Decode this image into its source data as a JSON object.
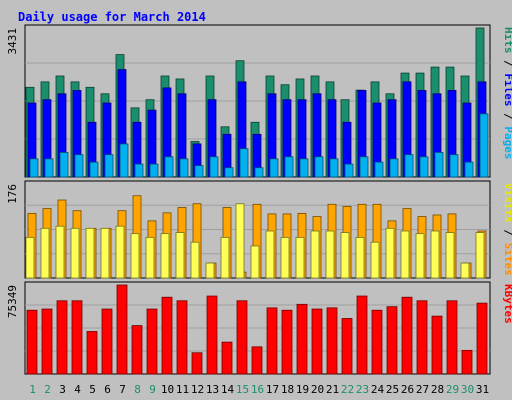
{
  "chart_data": {
    "type": "bar",
    "title": "Daily usage for March 2014",
    "days": [
      "1",
      "2",
      "3",
      "4",
      "5",
      "6",
      "7",
      "8",
      "9",
      "10",
      "11",
      "12",
      "13",
      "14",
      "15",
      "16",
      "17",
      "18",
      "19",
      "20",
      "21",
      "22",
      "23",
      "24",
      "25",
      "26",
      "27",
      "28",
      "29",
      "30",
      "31"
    ],
    "weekend_days": [
      "1",
      "2",
      "8",
      "9",
      "15",
      "16",
      "22",
      "23",
      "29",
      "30"
    ],
    "panels": [
      {
        "id": "hits",
        "max_label": "3431",
        "ymax": 3431,
        "right_labels": [
          {
            "text": "Pages",
            "color": "#00b0f0"
          },
          {
            "text": " / ",
            "color": "#000000"
          },
          {
            "text": "Files",
            "color": "#0000ff"
          },
          {
            "text": " / ",
            "color": "#000000"
          },
          {
            "text": "Hits",
            "color": "#1b8e6e"
          }
        ],
        "series": [
          {
            "name": "Hits",
            "color": "#1b8e6e",
            "values": [
              2065,
              2191,
              2326,
              2191,
              2065,
              1916,
              2818,
              1593,
              1780,
              2326,
              2258,
              818,
              2326,
              1156,
              2678,
              1260,
              2326,
              2125,
              2258,
              2326,
              2191,
              1780,
              2000,
              2191,
              1916,
              2393,
              2393,
              2531,
              2531,
              2326,
              3431
            ]
          },
          {
            "name": "Files",
            "color": "#0000ff",
            "values": [
              1703,
              1780,
              1916,
              1993,
              1260,
              1703,
              2474,
              1260,
              1540,
              2051,
              1916,
              762,
              1780,
              983,
              2191,
              983,
              1916,
              1780,
              1780,
              1916,
              1780,
              1260,
              1993,
              1703,
              1780,
              2191,
              1993,
              1916,
              1993,
              1703,
              2191
            ]
          },
          {
            "name": "Pages",
            "color": "#00b0f0",
            "values": [
              418,
              418,
              565,
              514,
              342,
              514,
              762,
              297,
              297,
              465,
              418,
              262,
              465,
              214,
              652,
              214,
              418,
              465,
              418,
              465,
              418,
              297,
              465,
              342,
              418,
              514,
              465,
              565,
              514,
              342,
              1455
            ]
          }
        ]
      },
      {
        "id": "visits",
        "max_label": "176",
        "ymax": 176,
        "right_labels": [
          {
            "text": "Sites",
            "color": "#ff8c00"
          },
          {
            "text": " / ",
            "color": "#000000"
          },
          {
            "text": "Visits",
            "color": "#e6e600"
          }
        ],
        "series": [
          {
            "name": "Visits",
            "color": "#ffa500",
            "values": [
              121,
              130,
              146,
              126,
              93,
              93,
              126,
              154,
              107,
              122,
              132,
              139,
              28,
              132,
              11,
              138,
              120,
              120,
              121,
              115,
              138,
              134,
              138,
              138,
              107,
              130,
              115,
              118,
              120,
              28,
              88
            ]
          },
          {
            "name": "Sites",
            "color": "#ffff55",
            "values": [
              76,
              93,
              97,
              93,
              93,
              93,
              97,
              83,
              76,
              83,
              85,
              67,
              28,
              76,
              139,
              60,
              88,
              76,
              76,
              88,
              88,
              85,
              76,
              67,
              93,
              88,
              83,
              88,
              85,
              28,
              85
            ]
          }
        ]
      },
      {
        "id": "kbytes",
        "max_label": "75349",
        "ymax": 75349,
        "right_labels": [
          {
            "text": "KBytes",
            "color": "#ff0000"
          }
        ],
        "series": [
          {
            "name": "KBytes",
            "color": "#ff0000",
            "values": [
              54000,
              55000,
              62000,
              62000,
              36000,
              55000,
              75349,
              41000,
              55000,
              65000,
              62000,
              18000,
              66000,
              27000,
              62000,
              23000,
              56000,
              54000,
              59000,
              55000,
              56000,
              47000,
              66000,
              54000,
              57000,
              65000,
              62000,
              49000,
              62000,
              20000,
              60000
            ]
          }
        ]
      }
    ],
    "colors": {
      "frame_bg": "#c0c0c0",
      "plot_bg": "#c0c0c0",
      "title_color": "#0000ff",
      "day_label_weekday": "#000000",
      "day_label_weekend": "#1b8e6e"
    }
  }
}
